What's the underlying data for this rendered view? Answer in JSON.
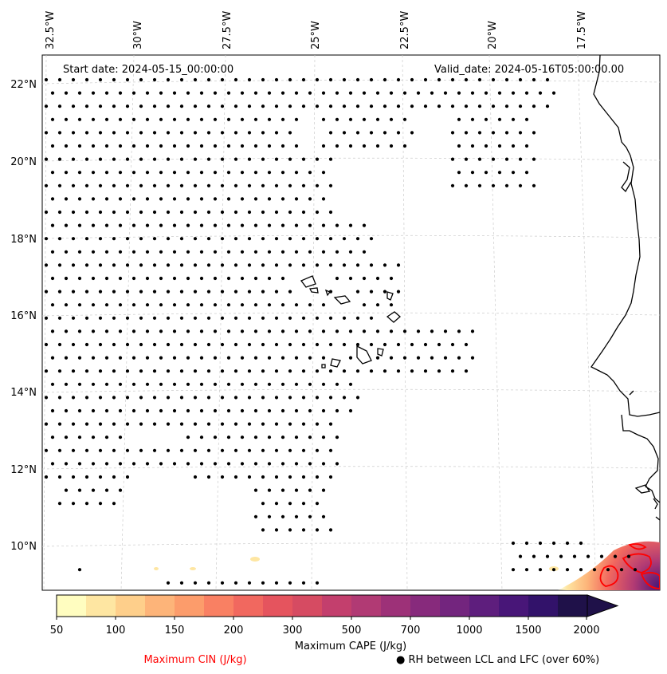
{
  "map": {
    "projection": "lambert",
    "start_date": "Start date: 2024-05-15_00:00:00",
    "valid_date": "Valid_date: 2024-05-16T05:00:00.00",
    "lon_ticks": [
      "32.5°W",
      "30°W",
      "27.5°W",
      "25°W",
      "22.5°W",
      "20°W",
      "17.5°W"
    ],
    "lat_ticks": [
      "22°N",
      "20°N",
      "18°N",
      "16°N",
      "14°N",
      "12°N",
      "10°N"
    ],
    "gridlines": true,
    "land_fill": "white",
    "coastline_color": "#000000"
  },
  "colorbar": {
    "title": "Maximum CAPE (J/kg)",
    "ticks": [
      "50",
      "100",
      "150",
      "200",
      "300",
      "500",
      "700",
      "1000",
      "1500",
      "2000"
    ],
    "extend": "max",
    "colors": [
      "#fffdc0",
      "#fee6a2",
      "#fecf8b",
      "#fdb479",
      "#fc9c6b",
      "#f98063",
      "#f1685f",
      "#e5545e",
      "#d64b62",
      "#c33f6d",
      "#b13a74",
      "#9d3178",
      "#872a7c",
      "#73257e",
      "#5e1e7d",
      "#481678",
      "#32126a",
      "#1f1149"
    ]
  },
  "legend": {
    "cin_label": "Maximum CIN (J/kg)",
    "cin_color": "#ff0000",
    "rh_label": "● RH between LCL and LFC (over 60%)"
  }
}
